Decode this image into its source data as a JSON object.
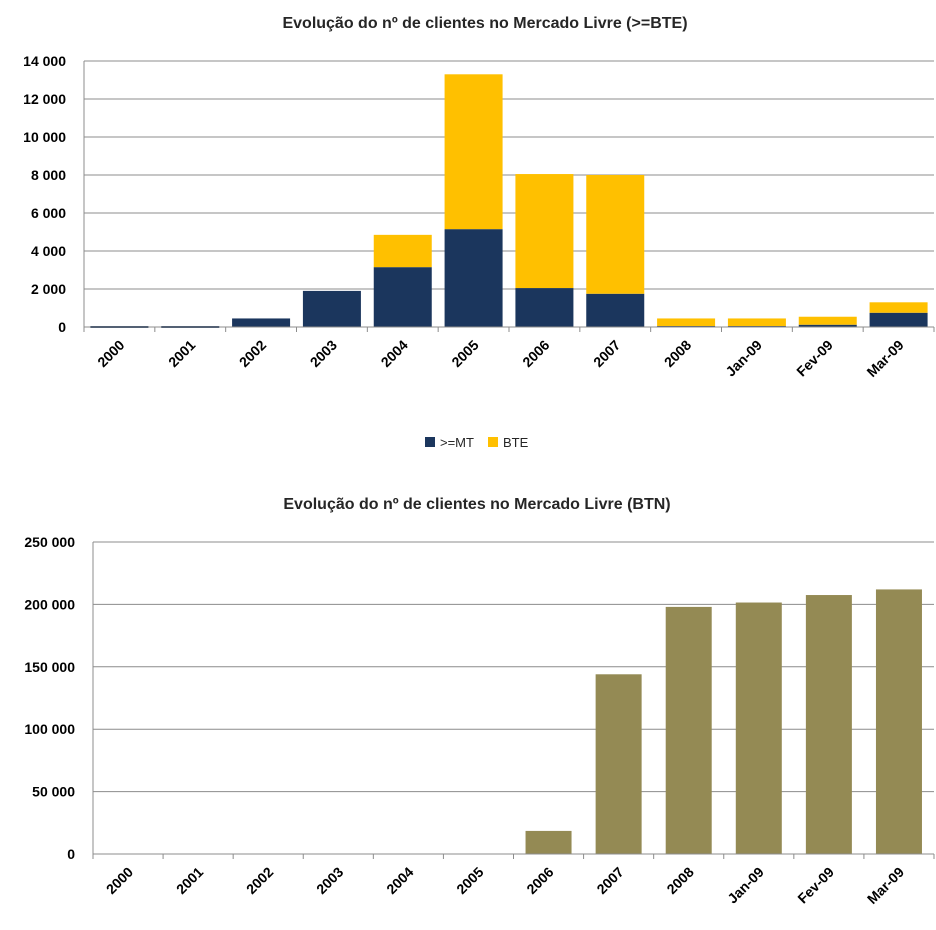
{
  "chart_data": [
    {
      "type": "bar",
      "stacked": true,
      "title": "Evolução do nº de clientes no Mercado Livre (>=BTE)",
      "categories": [
        "2000",
        "2001",
        "2002",
        "2003",
        "2004",
        "2005",
        "2006",
        "2007",
        "2008",
        "Jan-09",
        "Fev-09",
        "Mar-09"
      ],
      "series": [
        {
          "name": ">=MT",
          "color": "#1b365d",
          "values": [
            0,
            0,
            450,
            1900,
            3150,
            5150,
            2050,
            1750,
            50,
            50,
            120,
            750
          ]
        },
        {
          "name": "BTE",
          "color": "#ffc000",
          "values": [
            0,
            0,
            0,
            0,
            1700,
            8150,
            6000,
            6250,
            400,
            400,
            420,
            550
          ]
        }
      ],
      "ylim": [
        0,
        14000
      ],
      "yticks": [
        0,
        2000,
        4000,
        6000,
        8000,
        10000,
        12000,
        14000
      ],
      "ytick_labels": [
        "0",
        "2 000",
        "4 000",
        "6 000",
        "8 000",
        "10 000",
        "12 000",
        "14 000"
      ],
      "grid": true,
      "legend": "bottom"
    },
    {
      "type": "bar",
      "title": "Evolução do nº de clientes no Mercado Livre (BTN)",
      "categories": [
        "2000",
        "2001",
        "2002",
        "2003",
        "2004",
        "2005",
        "2006",
        "2007",
        "2008",
        "Jan-09",
        "Fev-09",
        "Mar-09"
      ],
      "series": [
        {
          "color": "#948a54",
          "values": [
            0,
            0,
            0,
            0,
            0,
            0,
            18500,
            144000,
            198000,
            201500,
            207500,
            212000
          ]
        }
      ],
      "ylim": [
        0,
        250000
      ],
      "yticks": [
        0,
        50000,
        100000,
        150000,
        200000,
        250000
      ],
      "ytick_labels": [
        "0",
        "50 000",
        "100 000",
        "150 000",
        "200 000",
        "250 000"
      ],
      "grid": true
    }
  ]
}
